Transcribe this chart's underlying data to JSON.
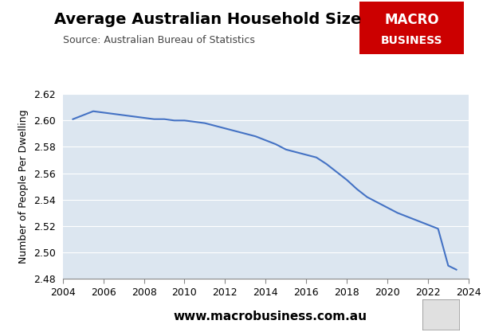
{
  "title": "Average Australian Household Size",
  "subtitle": "Source: Australian Bureau of Statistics",
  "ylabel": "Number of People Per Dwelling",
  "xlabel": "",
  "website": "www.macrobusiness.com.au",
  "brand_text_line1": "MACRO",
  "brand_text_line2": "BUSINESS",
  "brand_bg_color": "#cc0000",
  "brand_text_color": "#ffffff",
  "line_color": "#4472c4",
  "plot_bg_color": "#dce6f0",
  "figure_bg_color": "#ffffff",
  "ylim": [
    2.48,
    2.62
  ],
  "yticks": [
    2.48,
    2.5,
    2.52,
    2.54,
    2.56,
    2.58,
    2.6,
    2.62
  ],
  "x": [
    2004.5,
    2005.0,
    2005.5,
    2006.0,
    2006.5,
    2007.0,
    2007.5,
    2008.0,
    2008.5,
    2009.0,
    2009.5,
    2010.0,
    2010.5,
    2011.0,
    2011.5,
    2012.0,
    2012.5,
    2013.0,
    2013.5,
    2014.0,
    2014.5,
    2015.0,
    2015.5,
    2016.0,
    2016.5,
    2017.0,
    2017.5,
    2018.0,
    2018.5,
    2019.0,
    2019.5,
    2020.0,
    2020.5,
    2021.0,
    2021.5,
    2022.0,
    2022.5,
    2023.0,
    2023.4
  ],
  "y": [
    2.601,
    2.604,
    2.607,
    2.606,
    2.605,
    2.604,
    2.603,
    2.602,
    2.601,
    2.601,
    2.6,
    2.6,
    2.599,
    2.598,
    2.596,
    2.594,
    2.592,
    2.59,
    2.588,
    2.585,
    2.582,
    2.578,
    2.576,
    2.574,
    2.572,
    2.567,
    2.561,
    2.555,
    2.548,
    2.542,
    2.538,
    2.534,
    2.53,
    2.527,
    2.524,
    2.521,
    2.518,
    2.49,
    2.487
  ],
  "xlim": [
    2004,
    2024
  ],
  "xticks": [
    2004,
    2006,
    2008,
    2010,
    2012,
    2014,
    2016,
    2018,
    2020,
    2022,
    2024
  ]
}
